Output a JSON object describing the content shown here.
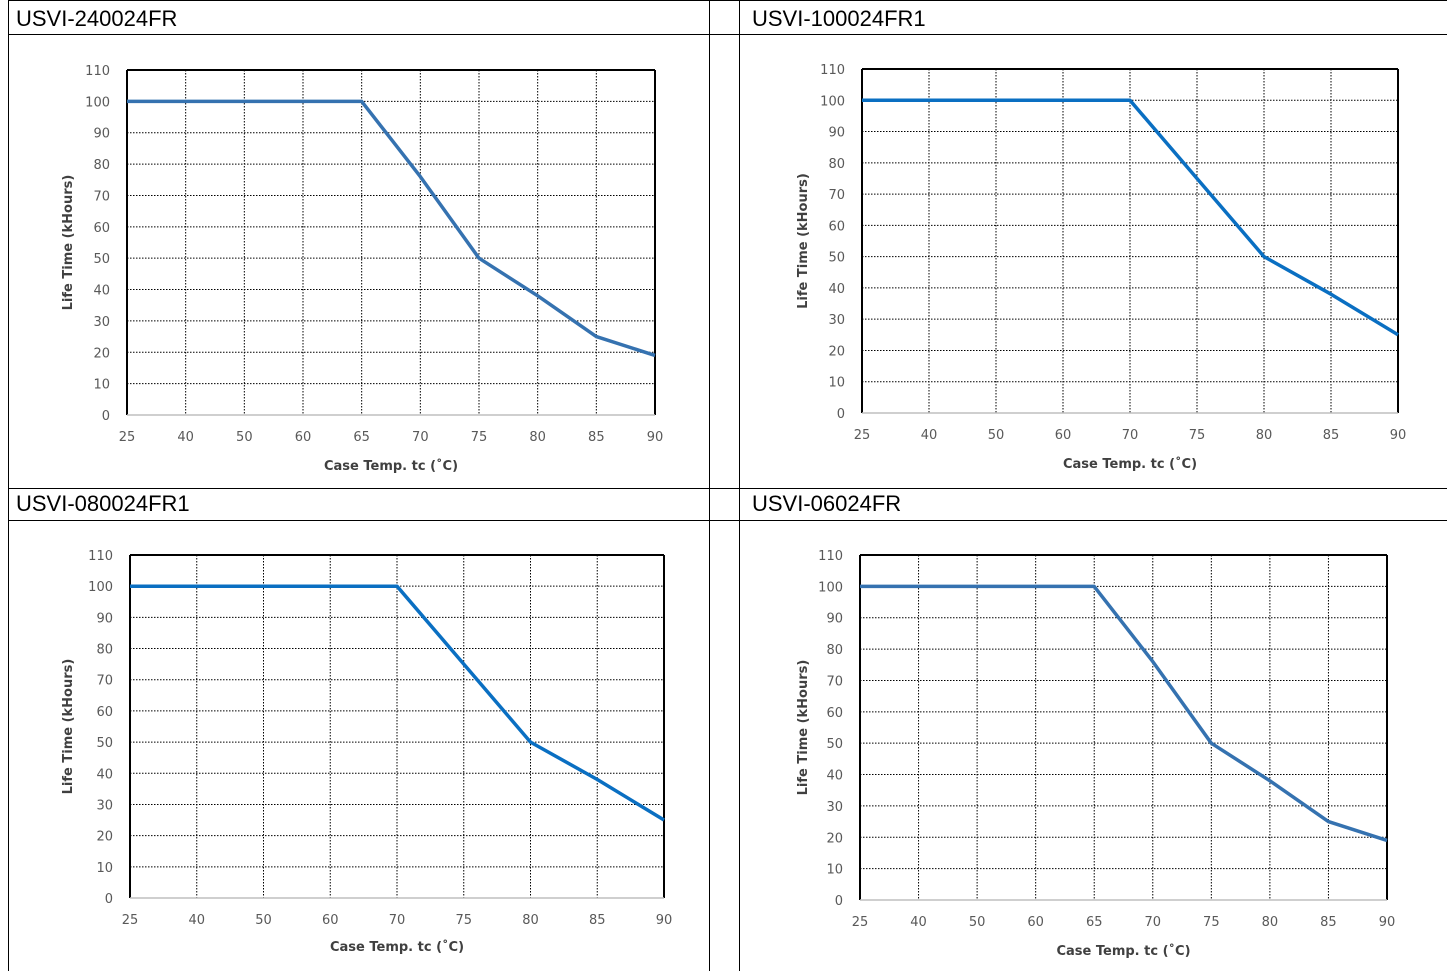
{
  "chart_data": [
    {
      "type": "line",
      "title": "USVI-240024FR",
      "xlabel": "Case Temp. tc (˚C)",
      "ylabel": "Life Time (kHours)",
      "x": [
        "25",
        "40",
        "50",
        "60",
        "65",
        "70",
        "75",
        "80",
        "85",
        "90"
      ],
      "series": [
        {
          "values": [
            100,
            100,
            100,
            100,
            100,
            76,
            50,
            38,
            25,
            19
          ]
        }
      ],
      "ylim": [
        0,
        110
      ],
      "yticks": [
        "0",
        "10",
        "20",
        "30",
        "40",
        "50",
        "60",
        "70",
        "80",
        "90",
        "100",
        "110"
      ],
      "grid": true,
      "line_color": "#3572b0"
    },
    {
      "type": "line",
      "title": "USVI-100024FR1",
      "xlabel": "Case Temp. tc (˚C)",
      "ylabel": "Life Time (kHours)",
      "x": [
        "25",
        "40",
        "50",
        "60",
        "70",
        "75",
        "80",
        "85",
        "90"
      ],
      "series": [
        {
          "values": [
            100,
            100,
            100,
            100,
            100,
            75,
            50,
            38,
            25
          ]
        }
      ],
      "ylim": [
        0,
        110
      ],
      "yticks": [
        "0",
        "10",
        "20",
        "30",
        "40",
        "50",
        "60",
        "70",
        "80",
        "90",
        "100",
        "110"
      ],
      "grid": true,
      "line_color": "#0a6fc2"
    },
    {
      "type": "line",
      "title": "USVI-080024FR1",
      "xlabel": "Case Temp. tc (˚C)",
      "ylabel": "Life Time (kHours)",
      "x": [
        "25",
        "40",
        "50",
        "60",
        "70",
        "75",
        "80",
        "85",
        "90"
      ],
      "series": [
        {
          "values": [
            100,
            100,
            100,
            100,
            100,
            75,
            50,
            38,
            25
          ]
        }
      ],
      "ylim": [
        0,
        110
      ],
      "yticks": [
        "0",
        "10",
        "20",
        "30",
        "40",
        "50",
        "60",
        "70",
        "80",
        "90",
        "100",
        "110"
      ],
      "grid": true,
      "line_color": "#0a6fc2"
    },
    {
      "type": "line",
      "title": "USVI-06024FR",
      "xlabel": "Case Temp. tc (˚C)",
      "ylabel": "Life Time (kHours)",
      "x": [
        "25",
        "40",
        "50",
        "60",
        "65",
        "70",
        "75",
        "80",
        "85",
        "90"
      ],
      "series": [
        {
          "values": [
            100,
            100,
            100,
            100,
            100,
            76,
            50,
            38,
            25,
            19
          ]
        }
      ],
      "ylim": [
        0,
        110
      ],
      "yticks": [
        "0",
        "10",
        "20",
        "30",
        "40",
        "50",
        "60",
        "70",
        "80",
        "90",
        "100",
        "110"
      ],
      "grid": true,
      "line_color": "#3572b0"
    }
  ]
}
